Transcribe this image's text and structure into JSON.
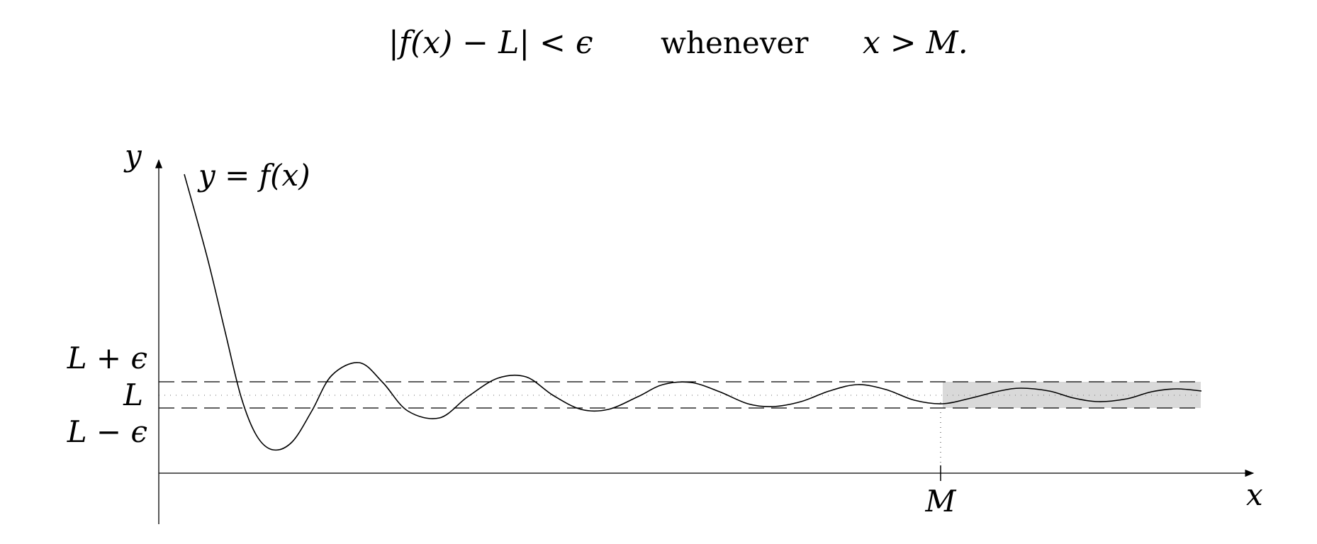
{
  "header": {
    "inequality": "|f(x) − L| < ϵ",
    "word": "whenever",
    "condition": "x > M."
  },
  "axes": {
    "x_label": "x",
    "y_label": "y"
  },
  "labels": {
    "curve": "y = f(x)",
    "upper": "L + ϵ",
    "middle": "L",
    "lower": "L − ϵ",
    "m_tick": "M"
  },
  "colors": {
    "ink": "#000000",
    "band_fill": "#d9d9d9",
    "dotted": "#888888"
  }
}
